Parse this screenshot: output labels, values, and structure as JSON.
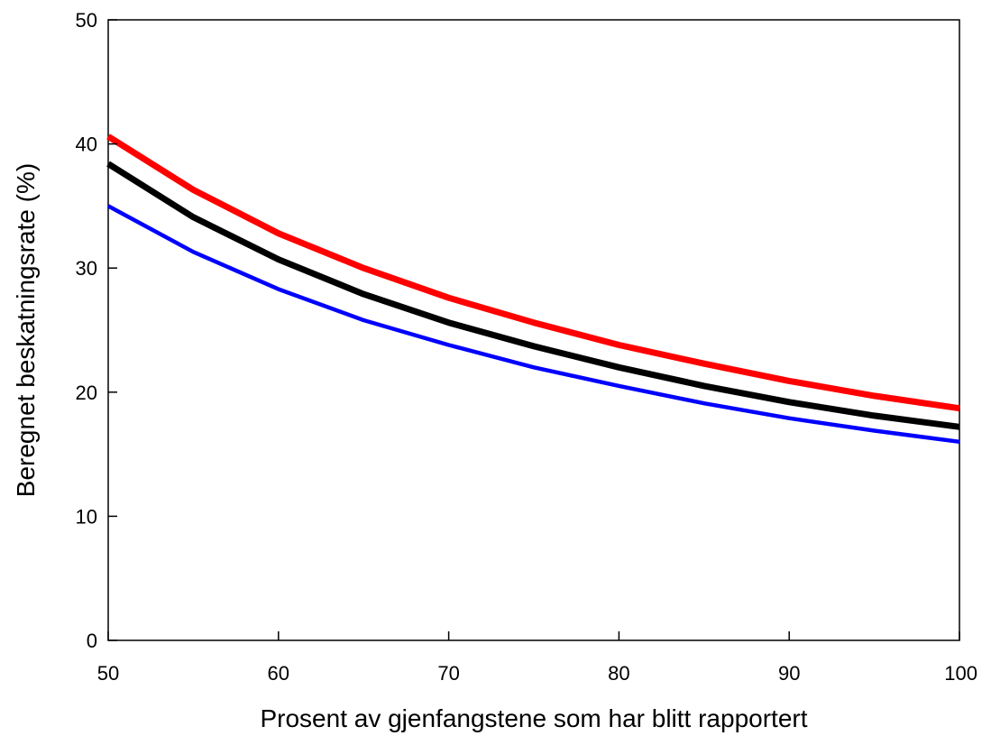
{
  "chart_data": {
    "type": "line",
    "title": "",
    "xlabel": "Prosent av gjenfangstene som har blitt rapportert",
    "ylabel": "Beregnet beskatningsrate (%)",
    "xlim": [
      50,
      100
    ],
    "ylim": [
      0,
      50
    ],
    "x_ticks": [
      50,
      60,
      70,
      80,
      90,
      100
    ],
    "y_ticks": [
      0,
      10,
      20,
      30,
      40,
      50
    ],
    "x_tick_labels": [
      "50",
      "60",
      "70",
      "80",
      "90",
      "100"
    ],
    "y_tick_labels": [
      "0",
      "10",
      "20",
      "30",
      "40",
      "50"
    ],
    "grid": false,
    "legend": "none",
    "x": [
      50,
      55,
      60,
      65,
      70,
      75,
      80,
      85,
      90,
      95,
      100
    ],
    "series": [
      {
        "color": "#ff0000",
        "values": [
          40.6,
          36.3,
          32.8,
          30.0,
          27.6,
          25.6,
          23.8,
          22.3,
          20.9,
          19.7,
          18.7
        ]
      },
      {
        "color": "#000000",
        "values": [
          38.4,
          34.1,
          30.7,
          27.9,
          25.6,
          23.7,
          22.0,
          20.5,
          19.2,
          18.1,
          17.2
        ]
      },
      {
        "color": "#0000ff",
        "values": [
          35.0,
          31.3,
          28.3,
          25.8,
          23.8,
          22.0,
          20.5,
          19.1,
          17.9,
          16.9,
          16.0
        ]
      }
    ]
  }
}
